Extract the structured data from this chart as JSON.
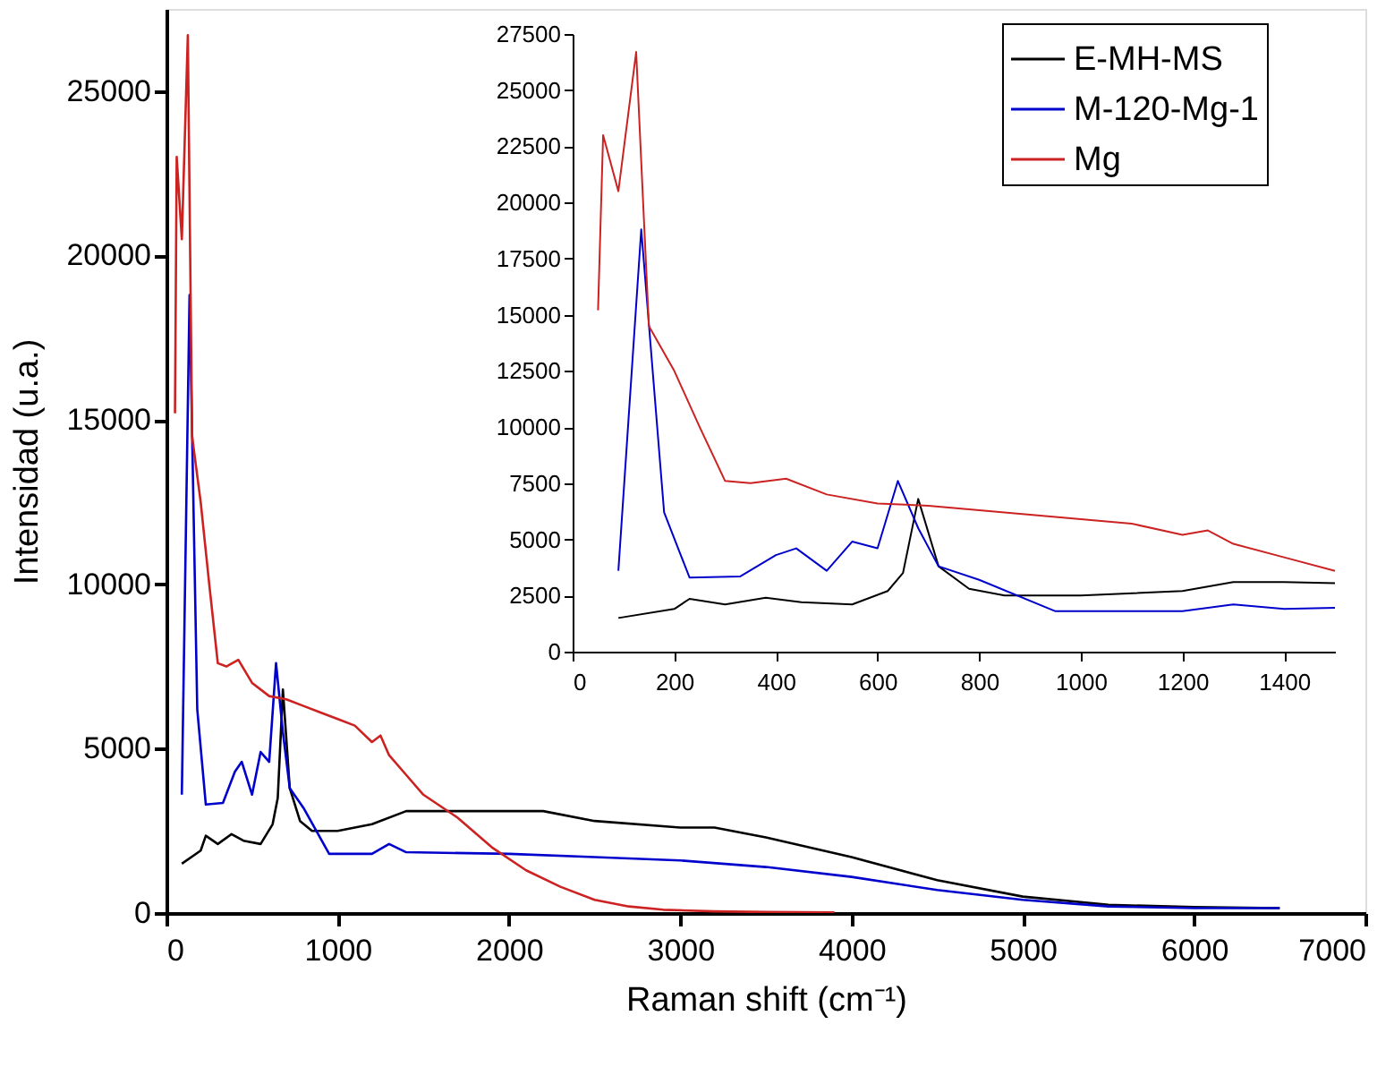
{
  "chart_data": [
    {
      "type": "line",
      "xlabel": "Raman shift (cm⁻¹)",
      "ylabel": "Intensidad (u.a.)",
      "xlim": [
        0,
        7000
      ],
      "ylim": [
        0,
        27500
      ],
      "xticks": [
        0,
        1000,
        2000,
        3000,
        4000,
        5000,
        6000,
        7000
      ],
      "yticks": [
        0,
        5000,
        10000,
        15000,
        20000,
        25000
      ],
      "grid": false,
      "legend": "top right",
      "series": [
        {
          "name": "E-MH-MS",
          "color": "#000000",
          "x": [
            90,
            200,
            230,
            300,
            380,
            450,
            550,
            620,
            650,
            680,
            720,
            780,
            850,
            1000,
            1200,
            1400,
            2000,
            2200,
            2500,
            3000,
            3200,
            3500,
            4000,
            4500,
            5000,
            5500,
            6000,
            6500
          ],
          "values": [
            1500,
            1900,
            2350,
            2100,
            2400,
            2200,
            2100,
            2700,
            3500,
            6800,
            3800,
            2800,
            2500,
            2500,
            2700,
            3100,
            3100,
            3100,
            2800,
            2600,
            2600,
            2300,
            1700,
            1000,
            500,
            250,
            180,
            150
          ]
        },
        {
          "name": "M-120-Mg-1",
          "color": "#0000cc",
          "x": [
            90,
            135,
            180,
            230,
            330,
            400,
            440,
            500,
            550,
            600,
            640,
            680,
            720,
            800,
            950,
            1200,
            1300,
            1400,
            2000,
            2500,
            3000,
            3500,
            4000,
            4500,
            5000,
            5500,
            6000,
            6500
          ],
          "values": [
            3600,
            18800,
            6200,
            3300,
            3350,
            4300,
            4600,
            3600,
            4900,
            4600,
            7600,
            5500,
            3800,
            3200,
            1800,
            1800,
            2100,
            1850,
            1800,
            1700,
            1600,
            1400,
            1100,
            700,
            400,
            200,
            150,
            150
          ]
        },
        {
          "name": "Mg",
          "color": "#cc2222",
          "x": [
            50,
            60,
            90,
            125,
            150,
            200,
            250,
            300,
            350,
            420,
            500,
            600,
            700,
            800,
            900,
            1000,
            1100,
            1200,
            1250,
            1300,
            1400,
            1500,
            1700,
            1900,
            2100,
            2300,
            2500,
            2700,
            2900,
            3200,
            3500,
            3900
          ],
          "values": [
            15200,
            23000,
            20500,
            26700,
            14500,
            12500,
            10000,
            7600,
            7500,
            7700,
            7000,
            6600,
            6500,
            6300,
            6100,
            5900,
            5700,
            5200,
            5400,
            4800,
            4200,
            3600,
            2900,
            2000,
            1300,
            800,
            400,
            200,
            100,
            50,
            30,
            20
          ]
        }
      ]
    },
    {
      "type": "line",
      "xlim": [
        0,
        1500
      ],
      "ylim": [
        0,
        27500
      ],
      "xticks": [
        0,
        200,
        400,
        600,
        800,
        1000,
        1200,
        1400
      ],
      "yticks": [
        0,
        2500,
        5000,
        7500,
        10000,
        12500,
        15000,
        17500,
        20000,
        22500,
        25000,
        27500
      ],
      "grid": false,
      "series": [
        {
          "color": "#000000",
          "x": [
            90,
            200,
            230,
            300,
            380,
            450,
            550,
            620,
            650,
            680,
            720,
            780,
            850,
            1000,
            1200,
            1300,
            1400,
            1500
          ],
          "values": [
            1500,
            1900,
            2350,
            2100,
            2400,
            2200,
            2100,
            2700,
            3500,
            6800,
            3800,
            2800,
            2500,
            2500,
            2700,
            3100,
            3100,
            3050
          ]
        },
        {
          "color": "#0000cc",
          "x": [
            90,
            135,
            180,
            230,
            330,
            400,
            440,
            500,
            550,
            600,
            640,
            680,
            720,
            800,
            950,
            1200,
            1300,
            1400,
            1500
          ],
          "values": [
            3600,
            18800,
            6200,
            3300,
            3350,
            4300,
            4600,
            3600,
            4900,
            4600,
            7600,
            5500,
            3800,
            3200,
            1800,
            1800,
            2100,
            1900,
            1950
          ]
        },
        {
          "color": "#cc2222",
          "x": [
            50,
            60,
            90,
            125,
            150,
            200,
            250,
            300,
            350,
            420,
            500,
            600,
            700,
            800,
            900,
            1000,
            1100,
            1200,
            1250,
            1300,
            1400,
            1500
          ],
          "values": [
            15200,
            23000,
            20500,
            26700,
            14500,
            12500,
            10000,
            7600,
            7500,
            7700,
            7000,
            6600,
            6500,
            6300,
            6100,
            5900,
            5700,
            5200,
            5400,
            4800,
            4200,
            3600
          ]
        }
      ]
    }
  ]
}
